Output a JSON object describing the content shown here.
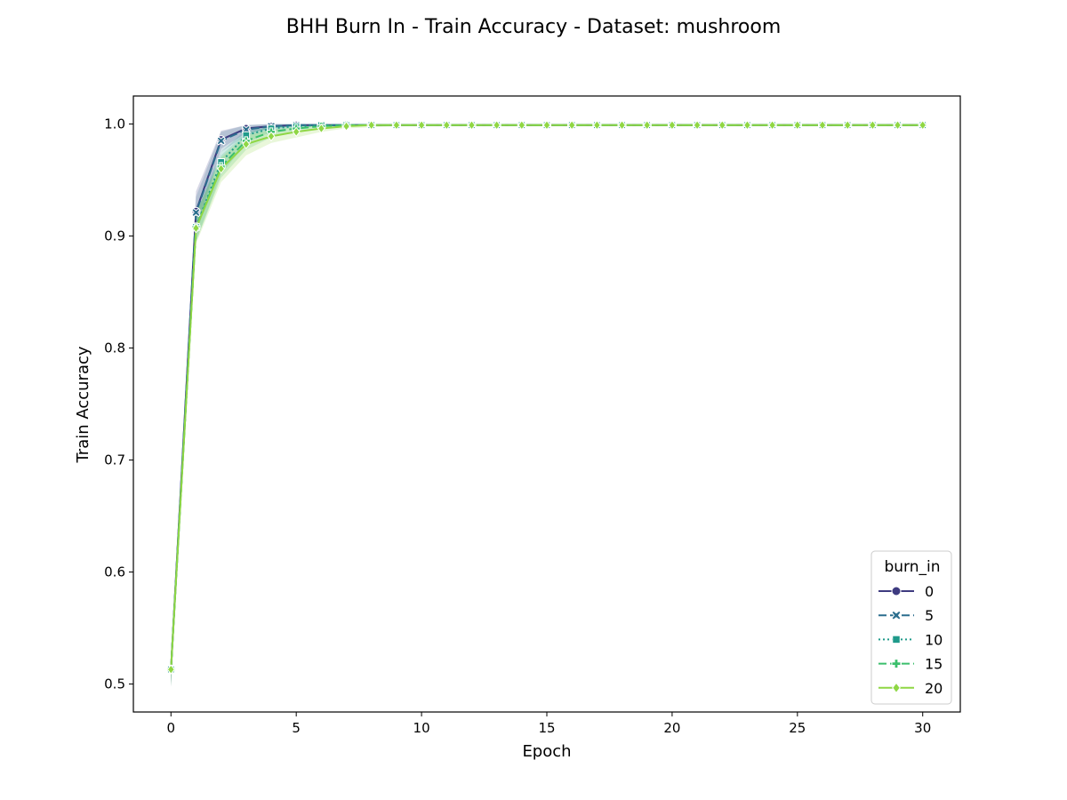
{
  "chart_data": {
    "type": "line",
    "title": "BHH Burn In - Train Accuracy - Dataset: mushroom",
    "xlabel": "Epoch",
    "ylabel": "Train Accuracy",
    "xlim": [
      -1.5,
      31.5
    ],
    "ylim": [
      0.475,
      1.025
    ],
    "xticks": [
      0,
      5,
      10,
      15,
      20,
      25,
      30
    ],
    "yticks": [
      0.5,
      0.6,
      0.7,
      0.8,
      0.9,
      1.0
    ],
    "ytick_labels": [
      "0.5",
      "0.6",
      "0.7",
      "0.8",
      "0.9",
      "1.0"
    ],
    "grid": false,
    "legend": {
      "title": "burn_in",
      "position": "lower-right"
    },
    "x": [
      0,
      1,
      2,
      3,
      4,
      5,
      6,
      7,
      8,
      9,
      10,
      11,
      12,
      13,
      14,
      15,
      16,
      17,
      18,
      19,
      20,
      21,
      22,
      23,
      24,
      25,
      26,
      27,
      28,
      29,
      30
    ],
    "series": [
      {
        "name": "0",
        "color": "#3e3b80",
        "marker": "circle",
        "dash": "solid",
        "values": [
          0.513,
          0.922,
          0.986,
          0.996,
          0.998,
          0.999,
          0.999,
          0.999,
          0.999,
          0.999,
          0.999,
          0.999,
          0.999,
          0.999,
          0.999,
          0.999,
          0.999,
          0.999,
          0.999,
          0.999,
          0.999,
          0.999,
          0.999,
          0.999,
          0.999,
          0.999,
          0.999,
          0.999,
          0.999,
          0.999,
          0.999
        ],
        "band_low": [
          0.497,
          0.905,
          0.978,
          0.992,
          0.996,
          0.998,
          0.998,
          0.998,
          0.998,
          0.998,
          0.998,
          0.998,
          0.998,
          0.998,
          0.998,
          0.998,
          0.998,
          0.998,
          0.998,
          0.998,
          0.998,
          0.998,
          0.998,
          0.998,
          0.998,
          0.998,
          0.998,
          0.998,
          0.998,
          0.998,
          0.998
        ],
        "band_high": [
          0.528,
          0.94,
          0.994,
          0.999,
          1.0,
          1.0,
          1.0,
          1.0,
          1.0,
          1.0,
          1.0,
          1.0,
          1.0,
          1.0,
          1.0,
          1.0,
          1.0,
          1.0,
          1.0,
          1.0,
          1.0,
          1.0,
          1.0,
          1.0,
          1.0,
          1.0,
          1.0,
          1.0,
          1.0,
          1.0,
          1.0
        ]
      },
      {
        "name": "5",
        "color": "#2c6e8e",
        "marker": "x",
        "dash": "dashed",
        "values": [
          0.513,
          0.921,
          0.985,
          0.995,
          0.998,
          0.999,
          0.999,
          0.999,
          0.999,
          0.999,
          0.999,
          0.999,
          0.999,
          0.999,
          0.999,
          0.999,
          0.999,
          0.999,
          0.999,
          0.999,
          0.999,
          0.999,
          0.999,
          0.999,
          0.999,
          0.999,
          0.999,
          0.999,
          0.999,
          0.999,
          0.999
        ],
        "band_low": [
          0.498,
          0.9,
          0.975,
          0.99,
          0.996,
          0.998,
          0.998,
          0.998,
          0.998,
          0.998,
          0.998,
          0.998,
          0.998,
          0.998,
          0.998,
          0.998,
          0.998,
          0.998,
          0.998,
          0.998,
          0.998,
          0.998,
          0.998,
          0.998,
          0.998,
          0.998,
          0.998,
          0.998,
          0.998,
          0.998,
          0.998
        ],
        "band_high": [
          0.528,
          0.935,
          0.993,
          0.999,
          1.0,
          1.0,
          1.0,
          1.0,
          1.0,
          1.0,
          1.0,
          1.0,
          1.0,
          1.0,
          1.0,
          1.0,
          1.0,
          1.0,
          1.0,
          1.0,
          1.0,
          1.0,
          1.0,
          1.0,
          1.0,
          1.0,
          1.0,
          1.0,
          1.0,
          1.0,
          1.0
        ]
      },
      {
        "name": "10",
        "color": "#1f9a8a",
        "marker": "square",
        "dash": "dotted",
        "values": [
          0.513,
          0.908,
          0.966,
          0.99,
          0.996,
          0.998,
          0.999,
          0.999,
          0.999,
          0.999,
          0.999,
          0.999,
          0.999,
          0.999,
          0.999,
          0.999,
          0.999,
          0.999,
          0.999,
          0.999,
          0.999,
          0.999,
          0.999,
          0.999,
          0.999,
          0.999,
          0.999,
          0.999,
          0.999,
          0.999,
          0.999
        ],
        "band_low": [
          0.498,
          0.895,
          0.955,
          0.983,
          0.993,
          0.997,
          0.998,
          0.998,
          0.998,
          0.998,
          0.998,
          0.998,
          0.998,
          0.998,
          0.998,
          0.998,
          0.998,
          0.998,
          0.998,
          0.998,
          0.998,
          0.998,
          0.998,
          0.998,
          0.998,
          0.998,
          0.998,
          0.998,
          0.998,
          0.998,
          0.998
        ],
        "band_high": [
          0.528,
          0.92,
          0.975,
          0.995,
          0.999,
          1.0,
          1.0,
          1.0,
          1.0,
          1.0,
          1.0,
          1.0,
          1.0,
          1.0,
          1.0,
          1.0,
          1.0,
          1.0,
          1.0,
          1.0,
          1.0,
          1.0,
          1.0,
          1.0,
          1.0,
          1.0,
          1.0,
          1.0,
          1.0,
          1.0,
          1.0
        ]
      },
      {
        "name": "15",
        "color": "#3bbf6c",
        "marker": "plus",
        "dash": "dashed",
        "values": [
          0.513,
          0.908,
          0.962,
          0.985,
          0.993,
          0.996,
          0.998,
          0.999,
          0.999,
          0.999,
          0.999,
          0.999,
          0.999,
          0.999,
          0.999,
          0.999,
          0.999,
          0.999,
          0.999,
          0.999,
          0.999,
          0.999,
          0.999,
          0.999,
          0.999,
          0.999,
          0.999,
          0.999,
          0.999,
          0.999,
          0.999
        ],
        "band_low": [
          0.498,
          0.895,
          0.952,
          0.977,
          0.988,
          0.993,
          0.996,
          0.998,
          0.998,
          0.998,
          0.998,
          0.998,
          0.998,
          0.998,
          0.998,
          0.998,
          0.998,
          0.998,
          0.998,
          0.998,
          0.998,
          0.998,
          0.998,
          0.998,
          0.998,
          0.998,
          0.998,
          0.998,
          0.998,
          0.998,
          0.998
        ],
        "band_high": [
          0.528,
          0.92,
          0.972,
          0.992,
          0.998,
          0.999,
          1.0,
          1.0,
          1.0,
          1.0,
          1.0,
          1.0,
          1.0,
          1.0,
          1.0,
          1.0,
          1.0,
          1.0,
          1.0,
          1.0,
          1.0,
          1.0,
          1.0,
          1.0,
          1.0,
          1.0,
          1.0,
          1.0,
          1.0,
          1.0,
          1.0
        ]
      },
      {
        "name": "20",
        "color": "#8fd744",
        "marker": "diamond",
        "dash": "solid",
        "values": [
          0.513,
          0.907,
          0.96,
          0.982,
          0.989,
          0.993,
          0.996,
          0.998,
          0.999,
          0.999,
          0.999,
          0.999,
          0.999,
          0.999,
          0.999,
          0.999,
          0.999,
          0.999,
          0.999,
          0.999,
          0.999,
          0.999,
          0.999,
          0.999,
          0.999,
          0.999,
          0.999,
          0.999,
          0.999,
          0.999,
          0.999
        ],
        "band_low": [
          0.498,
          0.893,
          0.948,
          0.972,
          0.983,
          0.988,
          0.993,
          0.996,
          0.997,
          0.998,
          0.998,
          0.998,
          0.998,
          0.998,
          0.998,
          0.998,
          0.998,
          0.998,
          0.998,
          0.998,
          0.998,
          0.998,
          0.998,
          0.998,
          0.998,
          0.998,
          0.998,
          0.998,
          0.998,
          0.998,
          0.998
        ],
        "band_high": [
          0.528,
          0.92,
          0.97,
          0.99,
          0.995,
          0.997,
          0.999,
          1.0,
          1.0,
          1.0,
          1.0,
          1.0,
          1.0,
          1.0,
          1.0,
          1.0,
          1.0,
          1.0,
          1.0,
          1.0,
          1.0,
          1.0,
          1.0,
          1.0,
          1.0,
          1.0,
          1.0,
          1.0,
          1.0,
          1.0,
          1.0
        ]
      }
    ]
  }
}
